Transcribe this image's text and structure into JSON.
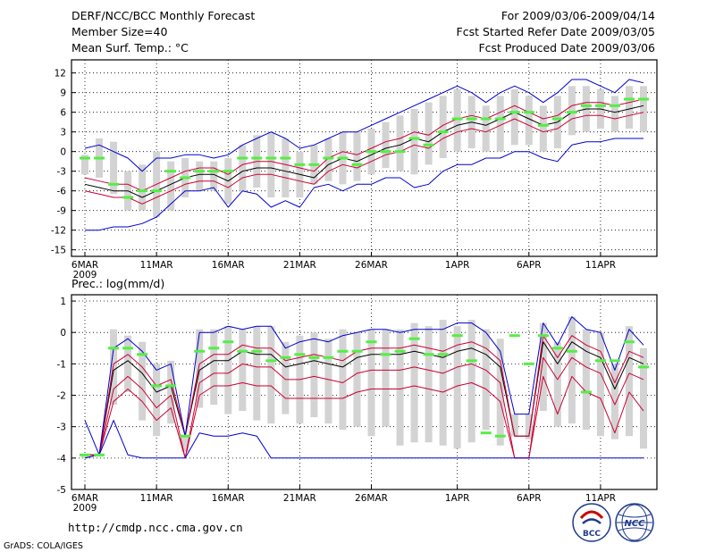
{
  "header": {
    "title": "DERF/NCC/BCC Monthly Forecast",
    "member_size": "Member Size=40",
    "variable": "Mean Surf. Temp.: °C",
    "forecast_range": "For 2009/03/06-2009/04/14",
    "fcst_started": "Fcst Started Refer Date 2009/03/05",
    "fcst_produced": "Fcst Produced Date 2009/03/06"
  },
  "footer": {
    "url": "http://cmdp.ncc.cma.gov.cn",
    "grads": "GrADS: COLA/IGES",
    "logo_bcc": "BCC",
    "logo_ncc": "NCC"
  },
  "colors": {
    "mean": "#000000",
    "spread": "#cc0033",
    "extreme": "#0000cc",
    "box": "#d3d3d3",
    "obs": "#55ee44"
  },
  "chart_data": [
    {
      "type": "line",
      "title": "Mean Surf. Temp.: °C",
      "x_dates_start": "2009-03-06",
      "x_count": 40,
      "xtick_labels": [
        "6MAR",
        "11MAR",
        "16MAR",
        "21MAR",
        "26MAR",
        "1APR",
        "6APR",
        "11APR"
      ],
      "xtick_index": [
        0,
        5,
        10,
        15,
        20,
        26,
        31,
        36
      ],
      "year_label": "2009",
      "ylim": [
        -16,
        14
      ],
      "yticks": [
        -15,
        -12,
        -9,
        -6,
        -3,
        0,
        3,
        6,
        9,
        12
      ],
      "series": [
        {
          "name": "mean",
          "color": "#000000",
          "values": [
            -5,
            -5.5,
            -6,
            -6,
            -7,
            -6,
            -5,
            -4,
            -3.5,
            -3.5,
            -4.5,
            -3,
            -2.5,
            -2.5,
            -3,
            -3.5,
            -4,
            -2,
            -1,
            -1.5,
            -0.5,
            0.5,
            1,
            2,
            1.5,
            3,
            4,
            4.5,
            4,
            5,
            6,
            5,
            4,
            4.5,
            6,
            6.5,
            6.5,
            6,
            6.5,
            7
          ]
        },
        {
          "name": "upper",
          "color": "#cc0033",
          "values": [
            -4,
            -4.5,
            -5,
            -5,
            -6,
            -5,
            -4,
            -3,
            -2.5,
            -2.5,
            -3.5,
            -2,
            -1.5,
            -1.5,
            -2,
            -2.5,
            -3,
            -1,
            0,
            -0.5,
            0.5,
            1.5,
            2,
            3,
            2.5,
            4,
            5,
            5.5,
            5,
            6,
            7,
            6,
            5,
            5.5,
            7,
            7.5,
            7.5,
            7,
            7.5,
            8
          ]
        },
        {
          "name": "lower",
          "color": "#cc0033",
          "values": [
            -6,
            -6.5,
            -7,
            -7,
            -8,
            -7,
            -6,
            -5,
            -4.5,
            -4.5,
            -5.5,
            -4,
            -3.5,
            -3.5,
            -4,
            -4.5,
            -5,
            -3,
            -2,
            -2.5,
            -1.5,
            -0.5,
            0,
            1,
            0.5,
            2,
            3,
            3.5,
            3,
            4,
            5,
            4,
            3,
            3.5,
            5,
            5.5,
            5.5,
            5,
            5.5,
            6
          ]
        },
        {
          "name": "max",
          "color": "#0000cc",
          "values": [
            0.5,
            1,
            0,
            -1,
            -3,
            -1,
            -1,
            -0.5,
            -0.5,
            -1,
            -0.5,
            1,
            2,
            3,
            2,
            0.5,
            1,
            2,
            3,
            3,
            4,
            5,
            6,
            7,
            8,
            9,
            10,
            9,
            7.5,
            9,
            10,
            9,
            7.5,
            9,
            11,
            11,
            10,
            9,
            11,
            10.5
          ]
        },
        {
          "name": "min",
          "color": "#0000cc",
          "values": [
            -12,
            -12,
            -11.5,
            -11.5,
            -11,
            -10,
            -8,
            -6,
            -6,
            -5.5,
            -8.5,
            -6,
            -6.5,
            -8.5,
            -7.5,
            -8.5,
            -5.5,
            -5,
            -6,
            -5,
            -5,
            -4,
            -4,
            -5.5,
            -5,
            -3,
            -2,
            -2,
            -1,
            -1,
            0,
            0,
            -1,
            -1.5,
            1,
            1.5,
            1.5,
            2,
            2,
            2
          ]
        },
        {
          "name": "obs",
          "color": "#55ee44",
          "values": [
            -1,
            -1,
            -5,
            -7,
            -6,
            -6,
            -3,
            -4,
            -3,
            -3,
            -3,
            -1,
            -1,
            -1,
            -1,
            -2,
            -2,
            -1,
            -1,
            -2,
            0,
            0,
            0,
            2,
            1,
            3,
            5,
            5,
            5,
            5,
            6,
            6,
            4,
            5,
            6,
            7,
            7,
            7,
            8,
            8
          ]
        }
      ],
      "box_top": [
        -0.5,
        2,
        1.5,
        -3,
        -2,
        0,
        -1.5,
        -1,
        -1.5,
        -1.5,
        -1,
        1,
        2.5,
        3,
        2,
        0,
        1,
        2,
        3,
        3,
        3.5,
        4.5,
        5.5,
        6.5,
        7.5,
        8.5,
        9.5,
        8.5,
        7,
        8.5,
        9.5,
        8.5,
        7,
        8.5,
        10,
        10,
        9.5,
        8.5,
        10,
        10
      ],
      "box_bottom": [
        -3.5,
        -4,
        -6.5,
        -9,
        -9,
        -10,
        -9,
        -7,
        -6,
        -6,
        -8,
        -6,
        -5.5,
        -7,
        -7,
        -7,
        -5,
        -4.5,
        -5,
        -4.5,
        -3.5,
        -2.5,
        -3,
        -3.5,
        -2,
        -1,
        0,
        0.5,
        0,
        0,
        1,
        1,
        0,
        0.5,
        2.5,
        3,
        3.5,
        3,
        3.5,
        3
      ]
    },
    {
      "type": "line",
      "title": "Prec.: log(mm/d)",
      "x_dates_start": "2009-03-06",
      "x_count": 40,
      "xtick_labels": [
        "6MAR",
        "11MAR",
        "16MAR",
        "21MAR",
        "26MAR",
        "1APR",
        "6APR",
        "11APR"
      ],
      "xtick_index": [
        0,
        5,
        10,
        15,
        20,
        26,
        31,
        36
      ],
      "year_label": "2009",
      "ylim": [
        -5,
        1.2
      ],
      "yticks": [
        -5,
        -4,
        -3,
        -2,
        -1,
        0,
        1
      ],
      "series": [
        {
          "name": "mean",
          "color": "#000000",
          "values": [
            -3.9,
            -3.9,
            -1.2,
            -0.9,
            -1.3,
            -1.9,
            -1.7,
            -3.3,
            -1.2,
            -0.9,
            -0.9,
            -0.6,
            -0.7,
            -0.7,
            -1.1,
            -1.0,
            -0.9,
            -1.0,
            -1.1,
            -0.8,
            -0.7,
            -0.7,
            -0.7,
            -0.6,
            -0.7,
            -0.8,
            -0.6,
            -0.5,
            -0.7,
            -1.1,
            -3.3,
            -3.3,
            -0.3,
            -1.0,
            -0.3,
            -0.6,
            -0.8,
            -1.8,
            -0.8,
            -1.0
          ]
        },
        {
          "name": "upper",
          "color": "#cc0033",
          "values": [
            -3.9,
            -3.9,
            -1.0,
            -0.7,
            -1.1,
            -1.7,
            -1.5,
            -3.3,
            -1.0,
            -0.7,
            -0.7,
            -0.4,
            -0.5,
            -0.5,
            -0.9,
            -0.8,
            -0.7,
            -0.8,
            -0.9,
            -0.6,
            -0.5,
            -0.5,
            -0.5,
            -0.4,
            -0.5,
            -0.6,
            -0.4,
            -0.3,
            -0.5,
            -0.9,
            -3.3,
            -3.3,
            -0.1,
            -0.8,
            -0.1,
            -0.4,
            -0.6,
            -1.6,
            -0.6,
            -0.8
          ]
        },
        {
          "name": "lower1",
          "color": "#cc0033",
          "values": [
            -3.9,
            -3.9,
            -1.8,
            -1.4,
            -1.8,
            -2.4,
            -2.0,
            -4.0,
            -1.6,
            -1.3,
            -1.3,
            -1.0,
            -1.1,
            -1.1,
            -1.5,
            -1.5,
            -1.4,
            -1.5,
            -1.6,
            -1.3,
            -1.2,
            -1.2,
            -1.2,
            -1.1,
            -1.2,
            -1.3,
            -1.1,
            -1.0,
            -1.2,
            -1.6,
            -4.0,
            -4.0,
            -0.8,
            -1.5,
            -0.8,
            -1.1,
            -1.3,
            -2.3,
            -1.3,
            -1.5
          ]
        },
        {
          "name": "lower2",
          "color": "#cc0033",
          "values": [
            -4.0,
            -3.9,
            -2.2,
            -1.8,
            -2.2,
            -2.8,
            -2.4,
            -4.0,
            -2.0,
            -1.7,
            -1.7,
            -1.6,
            -1.7,
            -1.7,
            -2.1,
            -2.1,
            -2.1,
            -2.1,
            -2.1,
            -1.9,
            -1.8,
            -1.8,
            -1.8,
            -1.7,
            -1.8,
            -1.9,
            -1.7,
            -1.6,
            -1.8,
            -2.2,
            -4.0,
            -4.0,
            -1.4,
            -2.6,
            -1.4,
            -1.9,
            -2.1,
            -3.2,
            -1.9,
            -2.5
          ]
        },
        {
          "name": "max",
          "color": "#0000cc",
          "values": [
            -2.8,
            -3.9,
            -0.5,
            -0.2,
            -0.6,
            -1.2,
            -1.0,
            -3.3,
            0.0,
            0.0,
            0.2,
            0.1,
            0.2,
            0.2,
            -0.5,
            -0.3,
            -0.2,
            -0.3,
            -0.1,
            0.0,
            0.1,
            0.1,
            0.0,
            0.1,
            0.1,
            0.1,
            0.3,
            0.3,
            0.0,
            -0.6,
            -2.6,
            -2.6,
            0.3,
            -0.4,
            0.5,
            0.1,
            0.0,
            -1.2,
            0.1,
            -0.4
          ]
        },
        {
          "name": "min",
          "color": "#0000cc",
          "values": [
            -4.0,
            -3.9,
            -2.8,
            -3.9,
            -4.0,
            -4.0,
            -4.0,
            -4.0,
            -3.2,
            -3.3,
            -3.3,
            -3.2,
            -3.3,
            -4.0,
            -4.0,
            -4.0,
            -4.0,
            -4.0,
            -4.0,
            -4.0,
            -4.0,
            -4.0,
            -4.0,
            -4.0,
            -4.0,
            -4.0,
            -4.0,
            -4.0,
            -4.0,
            -4.0,
            -4.0,
            -4.0,
            -4.0,
            -4.0,
            -4.0,
            -4.0,
            -4.0,
            -4.0,
            -4.0,
            -4.0
          ]
        },
        {
          "name": "obs",
          "color": "#55ee44",
          "values": [
            -3.9,
            -3.9,
            -0.5,
            -0.5,
            -0.7,
            -1.7,
            -1.7,
            -3.3,
            -0.6,
            -0.5,
            -0.3,
            -0.6,
            -0.6,
            -0.9,
            -0.8,
            -0.7,
            -0.8,
            -0.8,
            -0.6,
            -0.6,
            -0.3,
            -0.7,
            -0.6,
            -0.2,
            -0.7,
            -0.7,
            -0.1,
            -0.9,
            -3.2,
            -3.3,
            -0.1,
            -1.0,
            -0.1,
            -0.5,
            -0.6,
            -1.9,
            -0.9,
            -0.9,
            -0.3,
            -1.1
          ]
        }
      ],
      "box_top": [
        -4.0,
        -3.9,
        0.1,
        -0.1,
        -0.3,
        -1.0,
        -0.9,
        -3.3,
        0.1,
        0.1,
        0.2,
        0.1,
        0.2,
        0.2,
        -0.3,
        -0.1,
        0.0,
        -0.2,
        0.1,
        0.0,
        0.1,
        0.1,
        0.1,
        0.3,
        0.2,
        0.4,
        0.2,
        0.4,
        0.1,
        -0.2,
        -2.6,
        -2.6,
        0.3,
        -0.3,
        0.5,
        0.1,
        0.0,
        -1.0,
        0.2,
        -0.5
      ],
      "box_bottom": [
        -3.9,
        -3.9,
        -2.3,
        -1.9,
        -2.8,
        -3.3,
        -2.9,
        -3.8,
        -2.4,
        -2.3,
        -2.6,
        -2.5,
        -2.8,
        -2.9,
        -2.6,
        -2.9,
        -2.7,
        -2.9,
        -3.1,
        -3.0,
        -3.3,
        -3.0,
        -3.6,
        -3.5,
        -3.5,
        -3.6,
        -3.7,
        -3.5,
        -3.1,
        -3.6,
        -3.3,
        -3.4,
        -2.5,
        -3.0,
        -2.9,
        -3.1,
        -3.3,
        -3.4,
        -3.3,
        -3.7
      ]
    }
  ]
}
